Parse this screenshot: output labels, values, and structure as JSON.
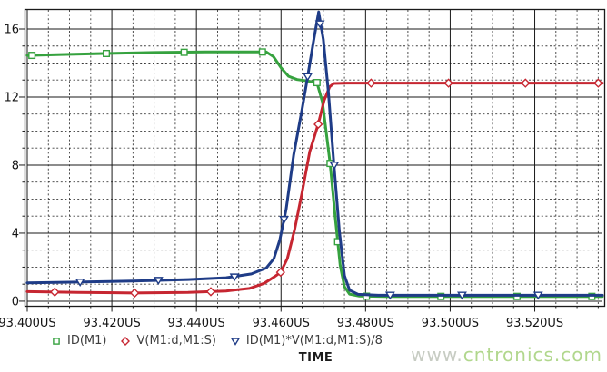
{
  "watermark": {
    "prefix": "www.",
    "main": "cntronics.com"
  },
  "chart_data": {
    "type": "line",
    "title": "",
    "xlabel": "TIME",
    "x_unit": "US",
    "xlim": [
      93.4,
      93.536
    ],
    "ylim": [
      -0.27,
      17.12
    ],
    "xticks": [
      93.4,
      93.42,
      93.44,
      93.46,
      93.48,
      93.5,
      93.52
    ],
    "xtick_labels": [
      "93.400US",
      "93.420US",
      "93.440US",
      "93.460US",
      "93.480US",
      "93.500US",
      "93.520US"
    ],
    "yticks": [
      0,
      4,
      8,
      12,
      16
    ],
    "ytick_labels": [
      "0",
      "4",
      "8",
      "12",
      "16"
    ],
    "x_minor_step": 0.005,
    "y_minor_step": 1,
    "grid": "major-solid-minor-dashed",
    "legend_position": "bottom",
    "background": "#ffffff",
    "axis_color": "#1a1a1a",
    "series": [
      {
        "id": "id-m1",
        "name": "ID(M1)",
        "color": "#36a23f",
        "marker": "square",
        "points": [
          [
            93.4,
            14.45
          ],
          [
            93.408,
            14.5
          ],
          [
            93.418,
            14.56
          ],
          [
            93.43,
            14.62
          ],
          [
            93.442,
            14.65
          ],
          [
            93.4565,
            14.65
          ],
          [
            93.4582,
            14.38
          ],
          [
            93.46,
            13.72
          ],
          [
            93.4618,
            13.22
          ],
          [
            93.4638,
            13.03
          ],
          [
            93.4662,
            12.95
          ],
          [
            93.4685,
            12.85
          ],
          [
            93.4698,
            11.7
          ],
          [
            93.4716,
            8.1
          ],
          [
            93.4728,
            5.0
          ],
          [
            93.474,
            2.1
          ],
          [
            93.475,
            0.85
          ],
          [
            93.4762,
            0.42
          ],
          [
            93.4785,
            0.3
          ],
          [
            93.485,
            0.28
          ],
          [
            93.536,
            0.28
          ]
        ],
        "marker_points": [
          [
            93.4011,
            14.45
          ],
          [
            93.4187,
            14.56
          ],
          [
            93.4371,
            14.63
          ],
          [
            93.4556,
            14.65
          ],
          [
            93.4685,
            12.85
          ],
          [
            93.4716,
            8.1
          ],
          [
            93.4734,
            3.5
          ],
          [
            93.4802,
            0.29
          ],
          [
            93.4978,
            0.28
          ],
          [
            93.5158,
            0.28
          ],
          [
            93.5335,
            0.28
          ]
        ]
      },
      {
        "id": "v-m1d-m1s",
        "name": "V(M1:d,M1:S)",
        "color": "#c62631",
        "marker": "diamond",
        "points": [
          [
            93.4,
            0.56
          ],
          [
            93.412,
            0.52
          ],
          [
            93.425,
            0.48
          ],
          [
            93.438,
            0.52
          ],
          [
            93.447,
            0.6
          ],
          [
            93.4525,
            0.75
          ],
          [
            93.456,
            1.05
          ],
          [
            93.4585,
            1.45
          ],
          [
            93.4599,
            1.7
          ],
          [
            93.4615,
            2.5
          ],
          [
            93.4632,
            4.2
          ],
          [
            93.465,
            6.4
          ],
          [
            93.4668,
            8.8
          ],
          [
            93.4688,
            10.4
          ],
          [
            93.4702,
            11.8
          ],
          [
            93.4715,
            12.6
          ],
          [
            93.4725,
            12.8
          ],
          [
            93.476,
            12.82
          ],
          [
            93.536,
            12.82
          ]
        ],
        "marker_points": [
          [
            93.4065,
            0.54
          ],
          [
            93.4254,
            0.48
          ],
          [
            93.4434,
            0.56
          ],
          [
            93.4599,
            1.7
          ],
          [
            93.4688,
            10.4
          ],
          [
            93.4813,
            12.82
          ],
          [
            93.4996,
            12.82
          ],
          [
            93.5178,
            12.82
          ],
          [
            93.535,
            12.82
          ]
        ]
      },
      {
        "id": "power-div-8",
        "name": "ID(M1)*V(M1:d,M1:S)/8",
        "color": "#1f3c87",
        "marker": "triangle-down",
        "points": [
          [
            93.4,
            1.08
          ],
          [
            93.412,
            1.12
          ],
          [
            93.425,
            1.18
          ],
          [
            93.438,
            1.27
          ],
          [
            93.447,
            1.38
          ],
          [
            93.453,
            1.6
          ],
          [
            93.4565,
            1.95
          ],
          [
            93.4583,
            2.5
          ],
          [
            93.4597,
            3.6
          ],
          [
            93.4612,
            5.4
          ],
          [
            93.463,
            8.6
          ],
          [
            93.465,
            11.3
          ],
          [
            93.4663,
            13.2
          ],
          [
            93.4677,
            15.3
          ],
          [
            93.4689,
            17.0
          ],
          [
            93.47,
            15.4
          ],
          [
            93.4712,
            12.3
          ],
          [
            93.4725,
            8.1
          ],
          [
            93.4738,
            4.1
          ],
          [
            93.475,
            1.5
          ],
          [
            93.4762,
            0.65
          ],
          [
            93.4782,
            0.4
          ],
          [
            93.483,
            0.35
          ],
          [
            93.536,
            0.35
          ]
        ],
        "marker_points": [
          [
            93.4125,
            1.12
          ],
          [
            93.431,
            1.22
          ],
          [
            93.449,
            1.42
          ],
          [
            93.4607,
            4.8
          ],
          [
            93.4663,
            13.2
          ],
          [
            93.4692,
            16.3
          ],
          [
            93.4726,
            8.0
          ],
          [
            93.4858,
            0.35
          ],
          [
            93.5028,
            0.35
          ],
          [
            93.5208,
            0.35
          ]
        ]
      }
    ]
  }
}
